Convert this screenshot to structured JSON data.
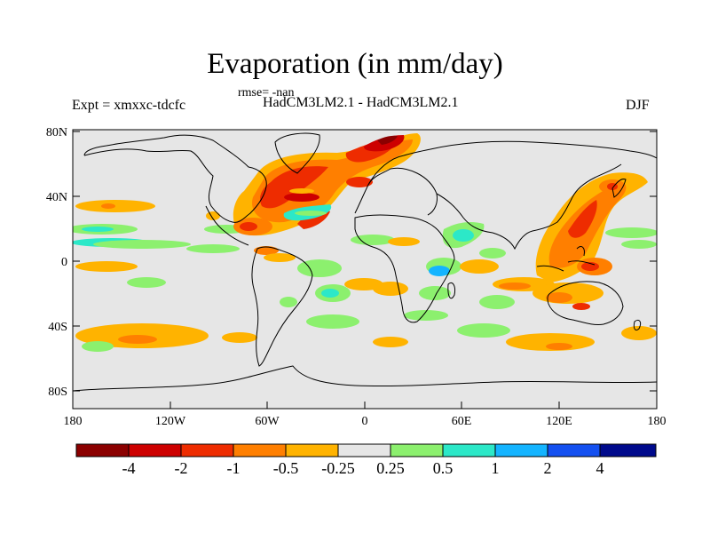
{
  "title": "Evaporation (in mm/day)",
  "rmse": "rmse= -nan",
  "expt": "Expt = xmxxc-tdcfc",
  "models": "HadCM3LM2.1 - HadCM3LM2.1",
  "season": "DJF",
  "map": {
    "ocean_color": "#e6e6e6",
    "y_ticks": [
      "80N",
      "40N",
      "0",
      "40S",
      "80S"
    ],
    "x_ticks": [
      "180",
      "120W",
      "60W",
      "0",
      "60E",
      "120E",
      "180"
    ]
  },
  "colorbar": {
    "colors": [
      "#8b0000",
      "#cd0000",
      "#ee2c00",
      "#ff7f00",
      "#ffb300",
      "#e6e6e6",
      "#8cf06e",
      "#2ce8c8",
      "#14b4ff",
      "#1450f0",
      "#000a8c"
    ],
    "labels": [
      "-4",
      "-2",
      "-1",
      "-0.5",
      "-0.25",
      "0.25",
      "0.5",
      "1",
      "2",
      "4"
    ]
  }
}
